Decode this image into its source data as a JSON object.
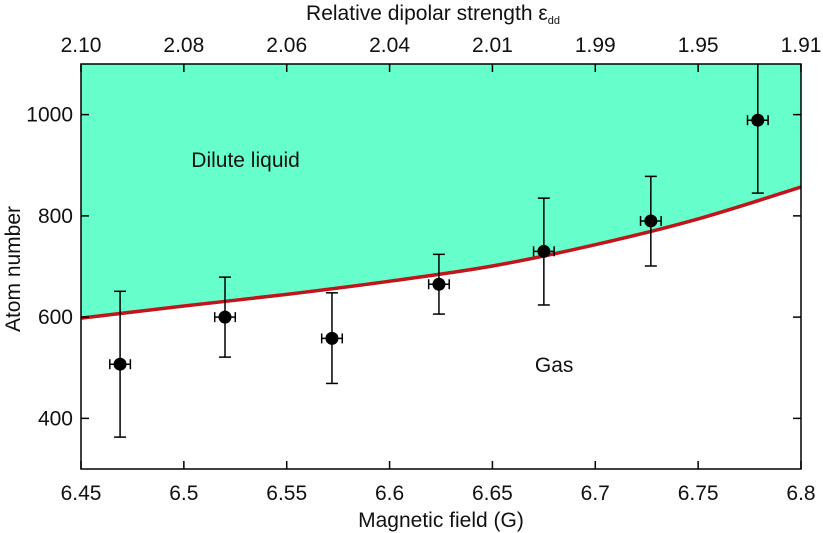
{
  "chart_data": {
    "type": "scatter",
    "xlabel": "Magnetic field (G)",
    "ylabel": "Atom number",
    "top_xlabel": "Relative dipolar strength ε",
    "top_xlabel_subscript": "dd",
    "xlim": [
      6.45,
      6.8
    ],
    "ylim": [
      300,
      1100
    ],
    "x_ticks": [
      6.45,
      6.5,
      6.55,
      6.6,
      6.65,
      6.7,
      6.75,
      6.8
    ],
    "x_tick_labels": [
      "6.45",
      "6.5",
      "6.55",
      "6.6",
      "6.65",
      "6.7",
      "6.75",
      "6.8"
    ],
    "y_ticks": [
      400,
      600,
      800,
      1000
    ],
    "y_tick_labels": [
      "400",
      "600",
      "800",
      "1000"
    ],
    "top_ticks_at_field": [
      6.45,
      6.5,
      6.55,
      6.6,
      6.65,
      6.7,
      6.75,
      6.8
    ],
    "top_tick_labels": [
      "2.10",
      "2.08",
      "2.06",
      "2.04",
      "2.01",
      "1.99",
      "1.95",
      "1.91"
    ],
    "points": [
      {
        "x": 6.469,
        "y": 507,
        "xerr": 0.005,
        "ylow": 363,
        "yhigh": 651
      },
      {
        "x": 6.52,
        "y": 600,
        "xerr": 0.005,
        "ylow": 521,
        "yhigh": 679
      },
      {
        "x": 6.572,
        "y": 558,
        "xerr": 0.005,
        "ylow": 469,
        "yhigh": 648
      },
      {
        "x": 6.624,
        "y": 665,
        "xerr": 0.005,
        "ylow": 606,
        "yhigh": 724
      },
      {
        "x": 6.675,
        "y": 730,
        "xerr": 0.005,
        "ylow": 624,
        "yhigh": 835
      },
      {
        "x": 6.727,
        "y": 790,
        "xerr": 0.005,
        "ylow": 701,
        "yhigh": 878
      },
      {
        "x": 6.779,
        "y": 989,
        "xerr": 0.005,
        "ylow": 845,
        "yhigh": 1100
      }
    ],
    "boundary": {
      "name": "phase boundary",
      "x": [
        6.45,
        6.5,
        6.55,
        6.6,
        6.65,
        6.7,
        6.75,
        6.8
      ],
      "y": [
        598,
        622,
        645,
        671,
        701,
        743,
        794,
        857
      ]
    },
    "regions": [
      {
        "label": "Dilute liquid",
        "x": 6.53,
        "y": 910
      },
      {
        "label": "Gas",
        "x": 6.68,
        "y": 505
      }
    ],
    "colors": {
      "fill": "#66ffcc",
      "boundary": "#c0161b",
      "points": "#000000"
    }
  }
}
